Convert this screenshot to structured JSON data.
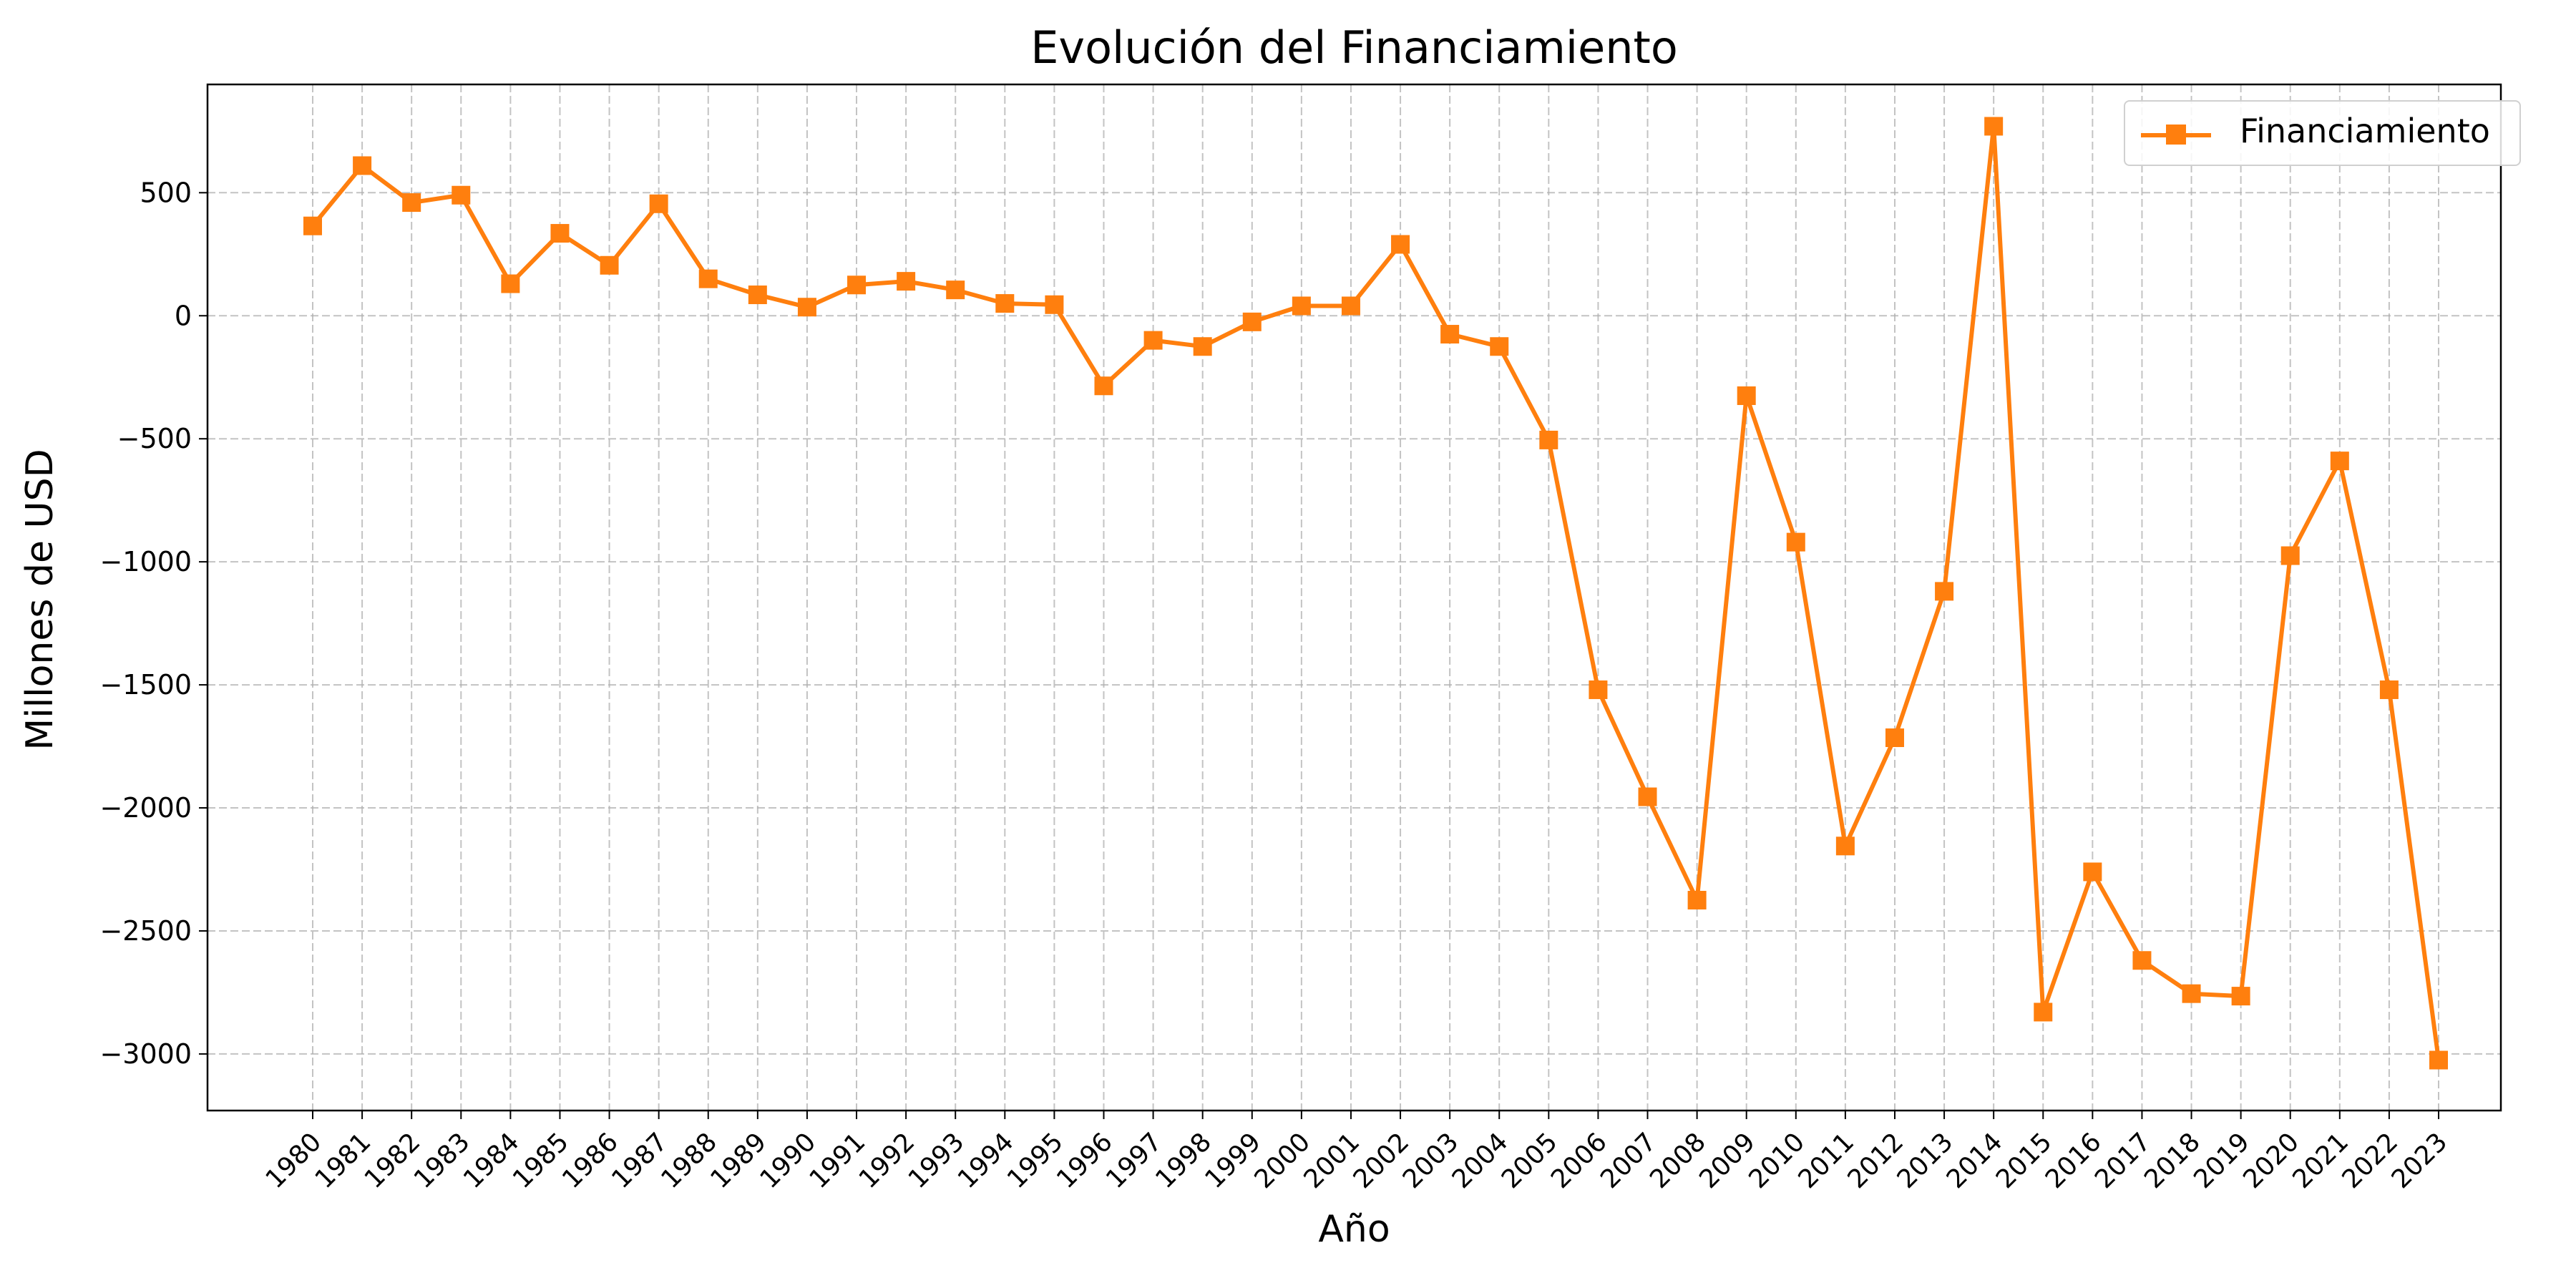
{
  "chart_data": {
    "type": "line",
    "title": "Evolución del Financiamiento",
    "xlabel": "Año",
    "ylabel": "Millones de USD",
    "ylim": [
      -3230,
      940
    ],
    "yticks": [
      500,
      0,
      -500,
      -1000,
      -1500,
      -2000,
      -2500,
      -3000
    ],
    "ytick_labels": [
      "500",
      "0",
      "−500",
      "−1000",
      "−1500",
      "−2000",
      "−2500",
      "−3000"
    ],
    "grid": true,
    "legend_position": "top-right",
    "color": "#ff7f0e",
    "marker": "square",
    "x": [
      "1980",
      "1981",
      "1982",
      "1983",
      "1984",
      "1985",
      "1986",
      "1987",
      "1988",
      "1989",
      "1990",
      "1991",
      "1992",
      "1993",
      "1994",
      "1995",
      "1996",
      "1997",
      "1998",
      "1999",
      "2000",
      "2001",
      "2002",
      "2003",
      "2004",
      "2005",
      "2006",
      "2007",
      "2008",
      "2009",
      "2010",
      "2011",
      "2012",
      "2013",
      "2014",
      "2015",
      "2016",
      "2017",
      "2018",
      "2019",
      "2020",
      "2021",
      "2022",
      "2023"
    ],
    "series": [
      {
        "name": "Financiamiento",
        "values": [
          365,
          610,
          460,
          490,
          130,
          335,
          205,
          455,
          150,
          85,
          35,
          125,
          140,
          105,
          50,
          45,
          -285,
          -100,
          -125,
          -25,
          40,
          40,
          290,
          -75,
          -125,
          -505,
          -1520,
          -1955,
          -2375,
          -325,
          -920,
          -2155,
          -1715,
          -1120,
          770,
          -2830,
          -2260,
          -2620,
          -2755,
          -2765,
          -975,
          -590,
          -1520,
          -3025
        ]
      }
    ]
  }
}
